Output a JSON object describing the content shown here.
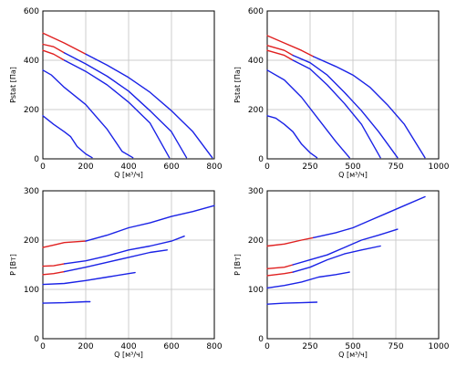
{
  "colors": {
    "red": "#e02020",
    "blue": "#1a22e6",
    "grid": "#cccccc",
    "axis": "#000000"
  },
  "chart_data": [
    {
      "type": "line",
      "xlabel": "Q [м³/ч]",
      "ylabel": "Pstat [Па]",
      "xlim": [
        0,
        800
      ],
      "ylim": [
        0,
        600
      ],
      "xticks": [
        0,
        200,
        400,
        600,
        800
      ],
      "yticks": [
        0,
        200,
        400,
        600
      ],
      "grid": true,
      "series": [
        {
          "color": "red",
          "points": [
            [
              0,
              510
            ],
            [
              100,
              470
            ],
            [
              200,
              425
            ]
          ]
        },
        {
          "color": "blue",
          "points": [
            [
              200,
              425
            ],
            [
              300,
              380
            ],
            [
              400,
              330
            ],
            [
              500,
              270
            ],
            [
              600,
              195
            ],
            [
              700,
              110
            ],
            [
              790,
              5
            ]
          ]
        },
        {
          "color": "red",
          "points": [
            [
              0,
              465
            ],
            [
              50,
              455
            ],
            [
              100,
              430
            ]
          ]
        },
        {
          "color": "blue",
          "points": [
            [
              100,
              430
            ],
            [
              200,
              385
            ],
            [
              300,
              335
            ],
            [
              400,
              275
            ],
            [
              500,
              195
            ],
            [
              600,
              110
            ],
            [
              670,
              5
            ]
          ]
        },
        {
          "color": "red",
          "points": [
            [
              0,
              440
            ],
            [
              50,
              425
            ],
            [
              100,
              400
            ]
          ]
        },
        {
          "color": "blue",
          "points": [
            [
              100,
              400
            ],
            [
              200,
              355
            ],
            [
              300,
              300
            ],
            [
              400,
              230
            ],
            [
              500,
              145
            ],
            [
              590,
              5
            ]
          ]
        },
        {
          "color": "blue",
          "points": [
            [
              0,
              360
            ],
            [
              40,
              340
            ],
            [
              100,
              290
            ],
            [
              200,
              220
            ],
            [
              300,
              120
            ],
            [
              370,
              30
            ],
            [
              420,
              5
            ]
          ]
        },
        {
          "color": "blue",
          "points": [
            [
              0,
              175
            ],
            [
              50,
              140
            ],
            [
              100,
              110
            ],
            [
              130,
              90
            ],
            [
              160,
              50
            ],
            [
              200,
              20
            ],
            [
              230,
              5
            ]
          ]
        }
      ]
    },
    {
      "type": "line",
      "xlabel": "Q [м³/ч]",
      "ylabel": "Pstat [Па]",
      "xlim": [
        0,
        1000
      ],
      "ylim": [
        0,
        600
      ],
      "xticks": [
        0,
        250,
        500,
        750,
        1000
      ],
      "yticks": [
        0,
        200,
        400,
        600
      ],
      "grid": true,
      "series": [
        {
          "color": "red",
          "points": [
            [
              0,
              500
            ],
            [
              100,
              470
            ],
            [
              200,
              440
            ],
            [
              270,
              415
            ]
          ]
        },
        {
          "color": "blue",
          "points": [
            [
              270,
              415
            ],
            [
              400,
              375
            ],
            [
              500,
              340
            ],
            [
              600,
              290
            ],
            [
              700,
              220
            ],
            [
              800,
              140
            ],
            [
              920,
              5
            ]
          ]
        },
        {
          "color": "red",
          "points": [
            [
              0,
              460
            ],
            [
              100,
              440
            ],
            [
              150,
              420
            ]
          ]
        },
        {
          "color": "blue",
          "points": [
            [
              150,
              420
            ],
            [
              250,
              390
            ],
            [
              350,
              340
            ],
            [
              450,
              270
            ],
            [
              550,
              195
            ],
            [
              650,
              110
            ],
            [
              760,
              5
            ]
          ]
        },
        {
          "color": "red",
          "points": [
            [
              0,
              440
            ],
            [
              100,
              420
            ],
            [
              150,
              400
            ]
          ]
        },
        {
          "color": "blue",
          "points": [
            [
              150,
              400
            ],
            [
              250,
              365
            ],
            [
              350,
              300
            ],
            [
              450,
              225
            ],
            [
              550,
              140
            ],
            [
              660,
              5
            ]
          ]
        },
        {
          "color": "blue",
          "points": [
            [
              0,
              360
            ],
            [
              100,
              320
            ],
            [
              200,
              250
            ],
            [
              300,
              160
            ],
            [
              400,
              70
            ],
            [
              480,
              5
            ]
          ]
        },
        {
          "color": "blue",
          "points": [
            [
              0,
              175
            ],
            [
              50,
              165
            ],
            [
              100,
              140
            ],
            [
              150,
              110
            ],
            [
              200,
              60
            ],
            [
              250,
              25
            ],
            [
              290,
              5
            ]
          ]
        }
      ]
    },
    {
      "type": "line",
      "xlabel": "Q [м³/ч]",
      "ylabel": "P [Вт]",
      "xlim": [
        0,
        800
      ],
      "ylim": [
        0,
        300
      ],
      "xticks": [
        0,
        200,
        400,
        600,
        800
      ],
      "yticks": [
        0,
        100,
        200,
        300
      ],
      "grid": true,
      "series": [
        {
          "color": "red",
          "points": [
            [
              0,
              185
            ],
            [
              50,
              190
            ],
            [
              100,
              195
            ],
            [
              200,
              198
            ]
          ]
        },
        {
          "color": "blue",
          "points": [
            [
              200,
              198
            ],
            [
              300,
              210
            ],
            [
              400,
              225
            ],
            [
              500,
              235
            ],
            [
              600,
              248
            ],
            [
              700,
              258
            ],
            [
              800,
              270
            ]
          ]
        },
        {
          "color": "red",
          "points": [
            [
              0,
              147
            ],
            [
              50,
              148
            ],
            [
              100,
              152
            ]
          ]
        },
        {
          "color": "blue",
          "points": [
            [
              100,
              152
            ],
            [
              200,
              158
            ],
            [
              300,
              168
            ],
            [
              400,
              180
            ],
            [
              500,
              188
            ],
            [
              600,
              198
            ],
            [
              660,
              208
            ]
          ]
        },
        {
          "color": "red",
          "points": [
            [
              0,
              130
            ],
            [
              50,
              132
            ],
            [
              100,
              136
            ]
          ]
        },
        {
          "color": "blue",
          "points": [
            [
              100,
              136
            ],
            [
              200,
              145
            ],
            [
              300,
              155
            ],
            [
              400,
              165
            ],
            [
              500,
              175
            ],
            [
              580,
              180
            ]
          ]
        },
        {
          "color": "blue",
          "points": [
            [
              0,
              110
            ],
            [
              100,
              112
            ],
            [
              200,
              118
            ],
            [
              300,
              125
            ],
            [
              400,
              132
            ],
            [
              430,
              134
            ]
          ]
        },
        {
          "color": "blue",
          "points": [
            [
              0,
              72
            ],
            [
              100,
              73
            ],
            [
              200,
              75
            ],
            [
              220,
              75
            ]
          ]
        }
      ]
    },
    {
      "type": "line",
      "xlabel": "Q [м³/ч]",
      "ylabel": "P [Вт]",
      "xlim": [
        0,
        1000
      ],
      "ylim": [
        0,
        300
      ],
      "xticks": [
        0,
        250,
        500,
        750,
        1000
      ],
      "yticks": [
        0,
        100,
        200,
        300
      ],
      "grid": true,
      "series": [
        {
          "color": "red",
          "points": [
            [
              0,
              188
            ],
            [
              100,
              192
            ],
            [
              200,
              200
            ],
            [
              270,
              205
            ]
          ]
        },
        {
          "color": "blue",
          "points": [
            [
              270,
              205
            ],
            [
              400,
              215
            ],
            [
              500,
              225
            ],
            [
              600,
              240
            ],
            [
              700,
              255
            ],
            [
              800,
              270
            ],
            [
              920,
              288
            ]
          ]
        },
        {
          "color": "red",
          "points": [
            [
              0,
              142
            ],
            [
              100,
              145
            ],
            [
              150,
              150
            ]
          ]
        },
        {
          "color": "blue",
          "points": [
            [
              150,
              150
            ],
            [
              250,
              160
            ],
            [
              350,
              170
            ],
            [
              450,
              185
            ],
            [
              550,
              200
            ],
            [
              650,
              210
            ],
            [
              760,
              222
            ]
          ]
        },
        {
          "color": "red",
          "points": [
            [
              0,
              128
            ],
            [
              100,
              132
            ],
            [
              150,
              135
            ]
          ]
        },
        {
          "color": "blue",
          "points": [
            [
              150,
              135
            ],
            [
              250,
              145
            ],
            [
              350,
              160
            ],
            [
              450,
              172
            ],
            [
              550,
              180
            ],
            [
              660,
              188
            ]
          ]
        },
        {
          "color": "blue",
          "points": [
            [
              0,
              103
            ],
            [
              100,
              108
            ],
            [
              200,
              115
            ],
            [
              300,
              125
            ],
            [
              400,
              130
            ],
            [
              480,
              135
            ]
          ]
        },
        {
          "color": "blue",
          "points": [
            [
              0,
              70
            ],
            [
              100,
              72
            ],
            [
              200,
              73
            ],
            [
              290,
              74
            ]
          ]
        }
      ]
    }
  ]
}
